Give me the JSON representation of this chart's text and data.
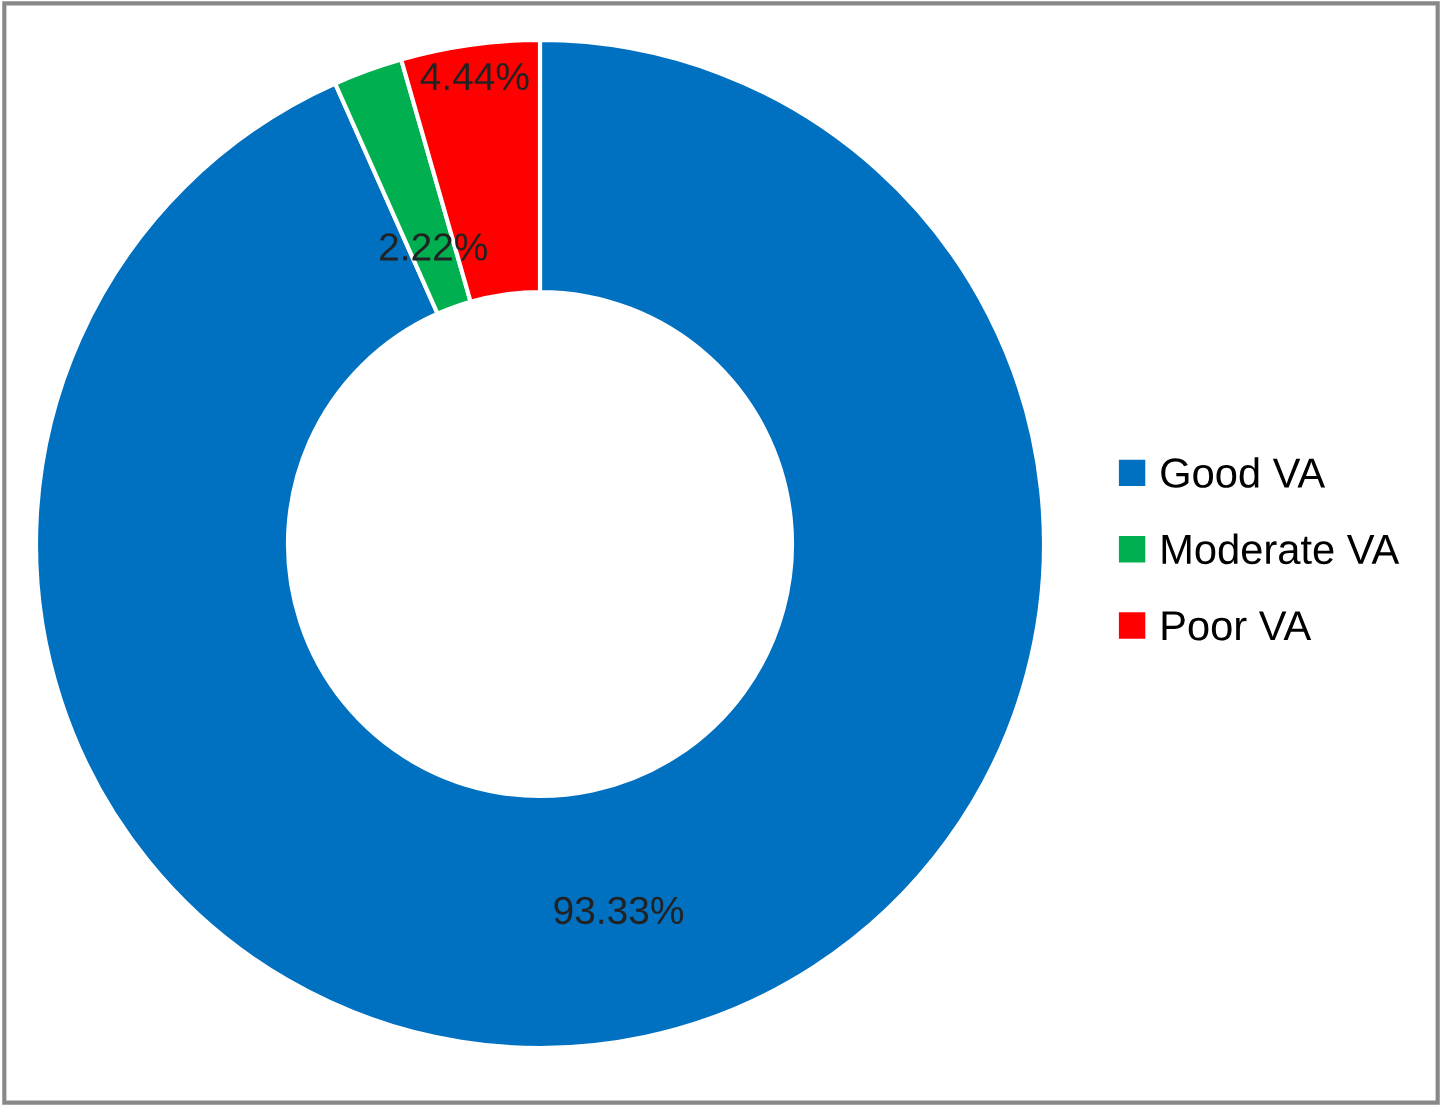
{
  "chart_data": {
    "type": "donut",
    "categories": [
      "Good VA",
      "Moderate VA",
      "Poor VA"
    ],
    "values": [
      93.33,
      2.22,
      4.44
    ],
    "colors": [
      "#0070c0",
      "#00b050",
      "#ff0000"
    ],
    "value_labels": [
      "93.33%",
      "2.22%",
      "4.44%"
    ],
    "legend": "right"
  }
}
